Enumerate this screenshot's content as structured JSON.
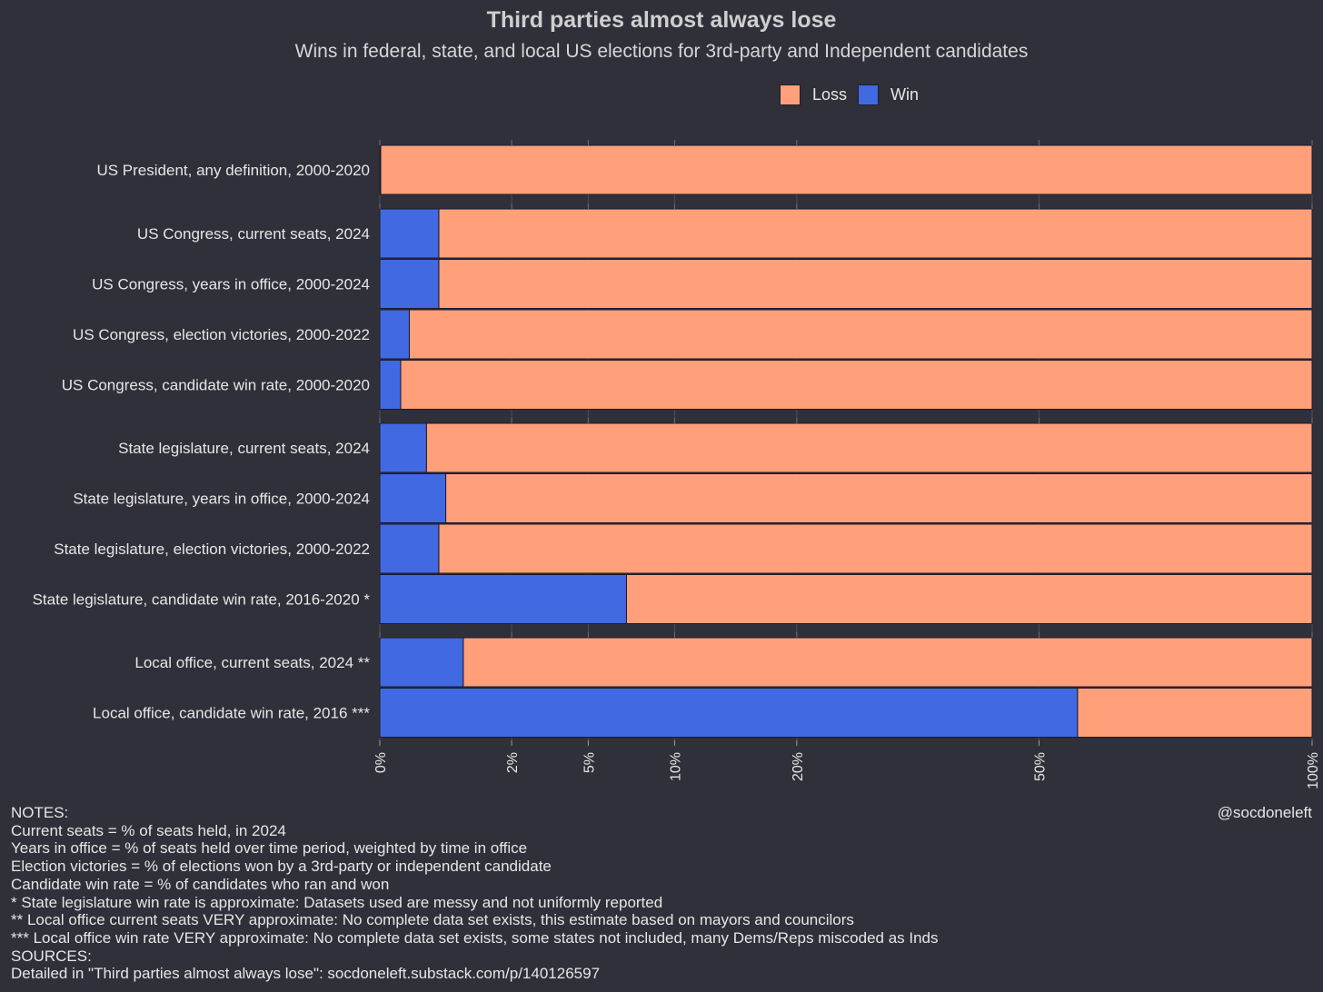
{
  "title": "Third parties almost always lose",
  "subtitle": "Wins in federal, state, and local US elections for 3rd-party and Independent candidates",
  "legend": [
    {
      "label": "Loss",
      "color": "#ffa07a"
    },
    {
      "label": "Win",
      "color": "#4169e1"
    }
  ],
  "handle": "@socdoneleft",
  "notes": [
    "NOTES:",
    "Current seats = % of seats held, in 2024",
    "Years in office = % of seats held over time period, weighted by time in office",
    "Election victories = % of elections won by a 3rd-party or independent candidate",
    "Candidate win rate = % of candidates who ran and won",
    "* State legislature win rate is approximate: Datasets used are messy and not uniformly reported",
    "** Local office current seats VERY approximate: No complete data set exists, this estimate based on mayors and councilors",
    "*** Local office win rate VERY approximate: No complete data set exists, some states not included, many Dems/Reps miscoded as Inds",
    "SOURCES:",
    "Detailed in \"Third parties almost always lose\": socdoneleft.substack.com/p/140126597"
  ],
  "chart_data": {
    "type": "bar",
    "orientation": "horizontal",
    "stacked": true,
    "x_scale": "sqrt",
    "xlim": [
      0,
      100
    ],
    "x_ticks": [
      0,
      2,
      5,
      10,
      20,
      50,
      100
    ],
    "x_tick_labels": [
      "0%",
      "2%",
      "5%",
      "10%",
      "20%",
      "50%",
      "100%"
    ],
    "panels": [
      {
        "categories": [
          "US President, any definition, 2000-2020"
        ],
        "win": [
          0
        ],
        "loss": [
          100
        ]
      },
      {
        "categories": [
          "US Congress, current seats, 2024",
          "US Congress, years in office, 2000-2024",
          "US Congress, election victories, 2000-2022",
          "US Congress, candidate win rate, 2000-2020"
        ],
        "win": [
          0.4,
          0.4,
          0.1,
          0.05
        ],
        "loss": [
          99.6,
          99.6,
          99.9,
          99.95
        ]
      },
      {
        "categories": [
          "State legislature, current seats, 2024",
          "State legislature, years in office, 2000-2024",
          "State legislature, election victories, 2000-2022",
          "State legislature, candidate win rate, 2016-2020 *"
        ],
        "win": [
          0.25,
          0.5,
          0.4,
          7
        ],
        "loss": [
          99.75,
          99.5,
          99.6,
          93
        ]
      },
      {
        "categories": [
          "Local office, current seats, 2024 **",
          "Local office, candidate win rate, 2016 ***"
        ],
        "win": [
          0.8,
          56
        ],
        "loss": [
          99.2,
          44
        ]
      }
    ]
  }
}
